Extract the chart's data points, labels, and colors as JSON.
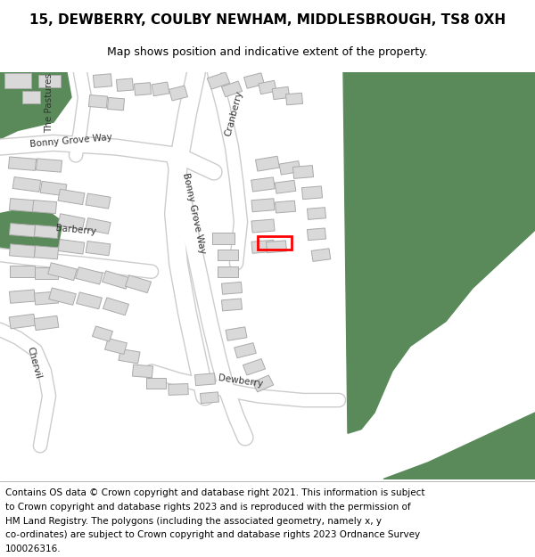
{
  "title": "15, DEWBERRY, COULBY NEWHAM, MIDDLESBROUGH, TS8 0XH",
  "subtitle": "Map shows position and indicative extent of the property.",
  "footer_lines": [
    "Contains OS data © Crown copyright and database right 2021. This information is subject",
    "to Crown copyright and database rights 2023 and is reproduced with the permission of",
    "HM Land Registry. The polygons (including the associated geometry, namely x, y",
    "co-ordinates) are subject to Crown copyright and database rights 2023 Ordnance Survey",
    "100026316."
  ],
  "bg_color": "#ffffff",
  "map_bg": "#f5f5f5",
  "road_color": "#ffffff",
  "road_outline": "#cccccc",
  "building_color": "#d9d9d9",
  "building_outline": "#aaaaaa",
  "green_color": "#5a8a5a",
  "highlight_color": "#ff0000",
  "title_fontsize": 11,
  "subtitle_fontsize": 9,
  "footer_fontsize": 7.5,
  "label_fontsize": 7.5
}
